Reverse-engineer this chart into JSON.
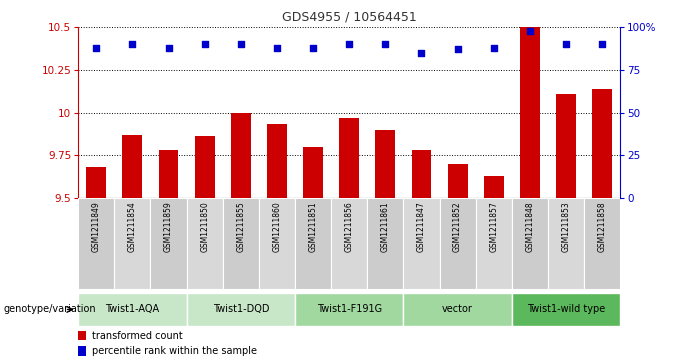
{
  "title": "GDS4955 / 10564451",
  "samples": [
    "GSM1211849",
    "GSM1211854",
    "GSM1211859",
    "GSM1211850",
    "GSM1211855",
    "GSM1211860",
    "GSM1211851",
    "GSM1211856",
    "GSM1211861",
    "GSM1211847",
    "GSM1211852",
    "GSM1211857",
    "GSM1211848",
    "GSM1211853",
    "GSM1211858"
  ],
  "bar_values": [
    9.68,
    9.87,
    9.78,
    9.86,
    10.0,
    9.93,
    9.8,
    9.97,
    9.9,
    9.78,
    9.7,
    9.63,
    10.5,
    10.11,
    10.14
  ],
  "percentile_values": [
    88,
    90,
    88,
    90,
    90,
    88,
    88,
    90,
    90,
    85,
    87,
    88,
    98,
    90,
    90
  ],
  "bar_color": "#cc0000",
  "percentile_color": "#0000cc",
  "ylim": [
    9.5,
    10.5
  ],
  "yticks": [
    9.5,
    9.75,
    10.0,
    10.25,
    10.5
  ],
  "ytick_labels": [
    "9.5",
    "9.75",
    "10",
    "10.25",
    "10.5"
  ],
  "right_yticks": [
    0,
    25,
    50,
    75,
    100
  ],
  "right_ytick_labels": [
    "0",
    "25",
    "50",
    "75",
    "100%"
  ],
  "groups": [
    {
      "label": "Twist1-AQA",
      "start": 0,
      "end": 3,
      "color": "#c8e6c8"
    },
    {
      "label": "Twist1-DQD",
      "start": 3,
      "end": 6,
      "color": "#c8e6c8"
    },
    {
      "label": "Twist1-F191G",
      "start": 6,
      "end": 9,
      "color": "#a0d8a0"
    },
    {
      "label": "vector",
      "start": 9,
      "end": 12,
      "color": "#a0d8a0"
    },
    {
      "label": "Twist1-wild type",
      "start": 12,
      "end": 15,
      "color": "#5cb85c"
    }
  ],
  "sample_box_colors": [
    "#d0d0d0",
    "#c0c0c0",
    "#d0d0d0",
    "#d0d0d0",
    "#c0c0c0",
    "#d0d0d0",
    "#d0d0d0",
    "#c0c0c0",
    "#d0d0d0",
    "#d0d0d0",
    "#c0c0c0",
    "#d0d0d0",
    "#d0d0d0",
    "#c0c0c0",
    "#d0d0d0"
  ],
  "xlabel_genotype": "genotype/variation",
  "legend_bar_label": "transformed count",
  "legend_pct_label": "percentile rank within the sample",
  "grid_color": "#000000",
  "bg_color": "#ffffff",
  "axis_label_color_left": "#cc0000",
  "axis_label_color_right": "#0000cc"
}
